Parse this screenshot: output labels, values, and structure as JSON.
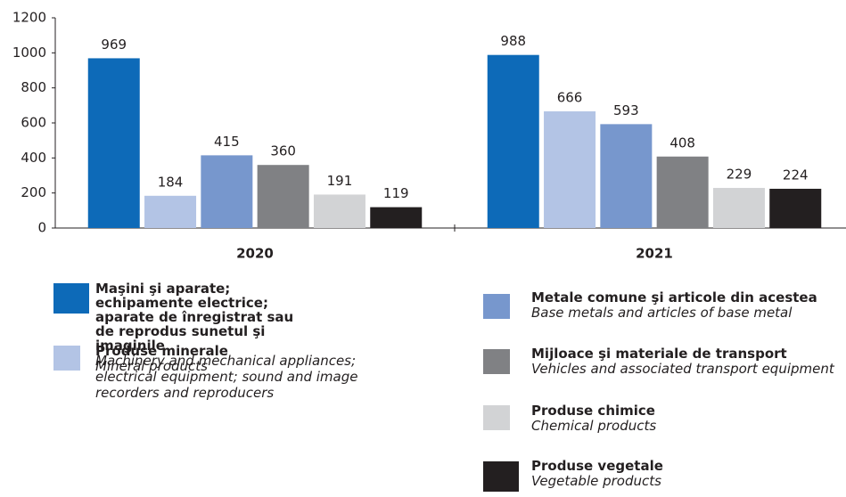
{
  "chart_data": {
    "type": "bar",
    "categories": [
      "2020",
      "2021"
    ],
    "series": [
      {
        "name": "Maşini şi aparate; echipamente electrice; aparate de înregistrat sau de reprodus sunetul şi imaginile",
        "name_en": "Machinery and mechanical appliances; electrical equipment; sound and image recorders and reproducers",
        "color": "#0d6ab8",
        "values": [
          969,
          988
        ]
      },
      {
        "name": "Produse minerale",
        "name_en": "Mineral products",
        "color": "#b3c4e5",
        "values": [
          184,
          666
        ]
      },
      {
        "name": "Metale comune şi articole din acestea",
        "name_en": "Base metals and articles of base metal",
        "color": "#7797cd",
        "values": [
          415,
          593
        ]
      },
      {
        "name": "Mijloace şi materiale de transport",
        "name_en": "Vehicles and associated transport equipment",
        "color": "#808184",
        "values": [
          360,
          408
        ]
      },
      {
        "name": "Produse chimice",
        "name_en": "Chemical products",
        "color": "#d2d3d5",
        "values": [
          191,
          229
        ]
      },
      {
        "name": "Produse vegetale",
        "name_en": "Vegetable products",
        "color": "#231f20",
        "values": [
          119,
          224
        ]
      }
    ],
    "ylim": [
      0,
      1200
    ],
    "yticks": [
      0,
      200,
      400,
      600,
      800,
      1000,
      1200
    ],
    "grid": false
  }
}
